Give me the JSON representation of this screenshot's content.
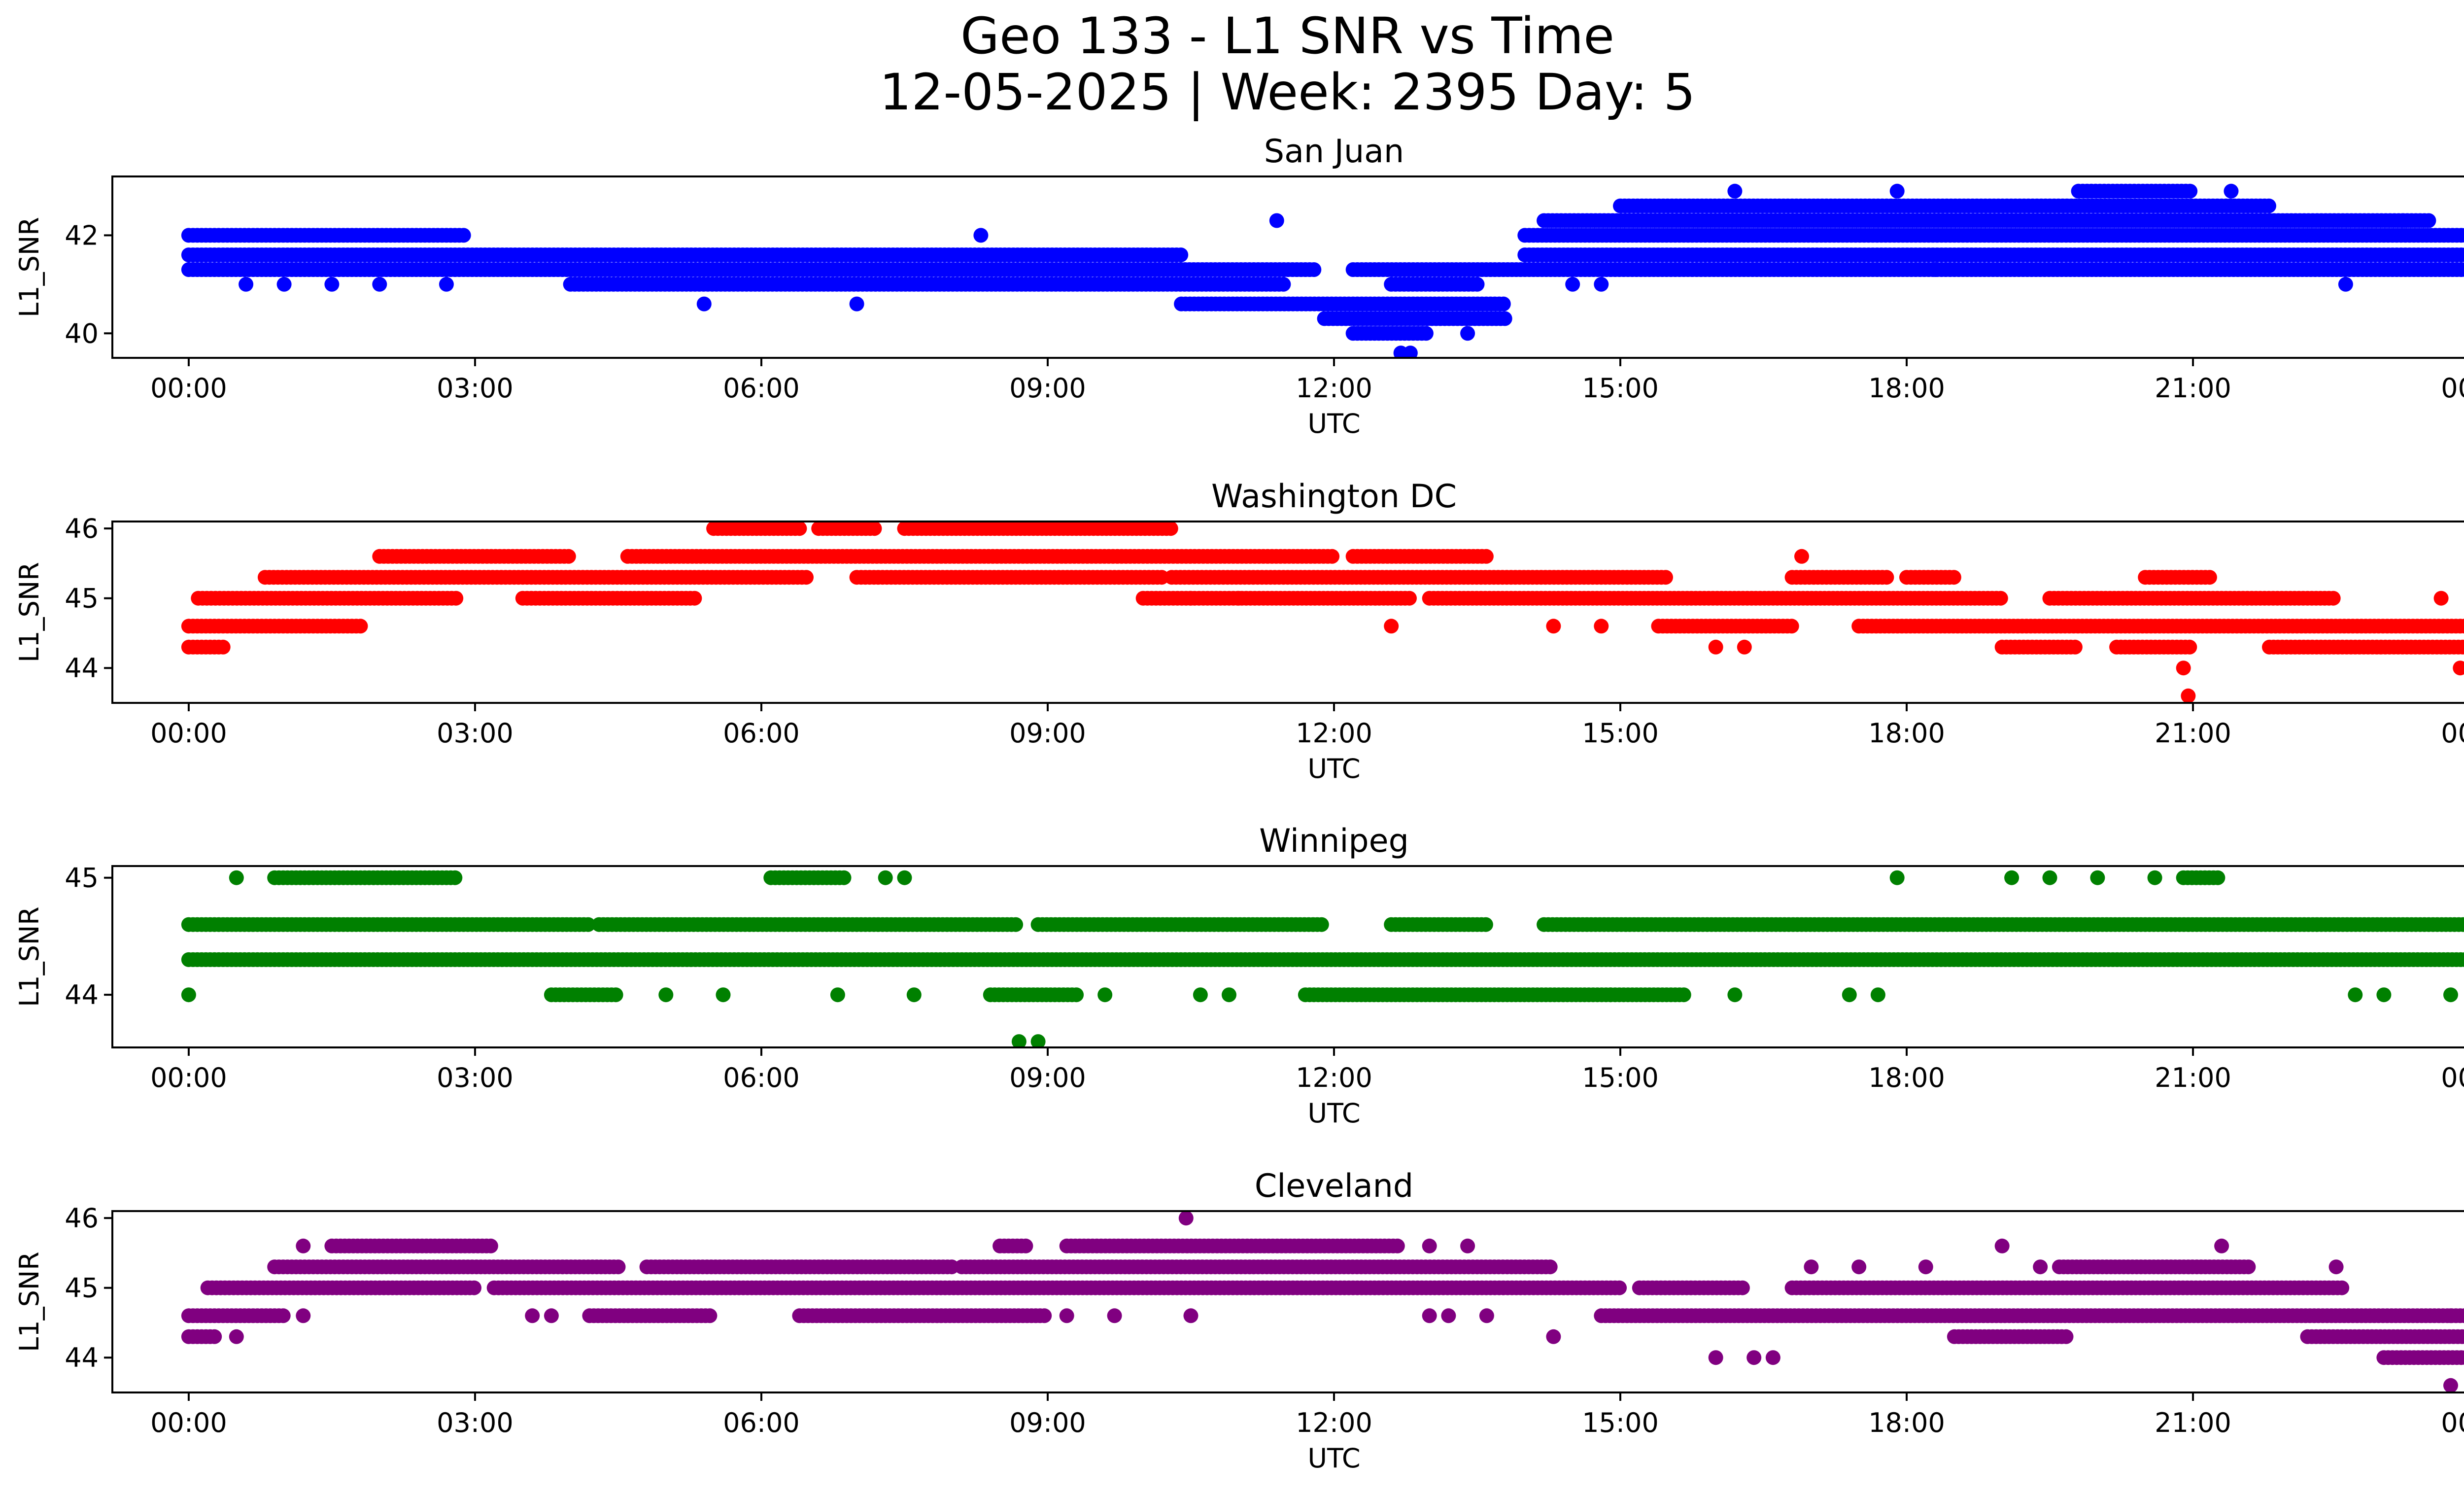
{
  "figure": {
    "title_line1": "Geo 133 - L1 SNR vs Time",
    "title_line2": "12-05-2025 | Week: 2395 Day: 5"
  },
  "chart_data": [
    {
      "type": "scatter",
      "title": "San Juan",
      "xlabel": "UTC",
      "ylabel": "L1_SNR",
      "color": "#0000ff",
      "xlim": [
        -0.8,
        24.8
      ],
      "ylim": [
        39.5,
        43.2
      ],
      "x_ticks": [
        "00:00",
        "03:00",
        "06:00",
        "09:00",
        "12:00",
        "15:00",
        "18:00",
        "21:00",
        "00:00"
      ],
      "y_ticks": [
        40,
        42
      ],
      "levels": [
        {
          "y": 41.3,
          "ranges": [
            [
              0.0,
              11.8
            ],
            [
              12.2,
              24.0
            ]
          ]
        },
        {
          "y": 41.6,
          "ranges": [
            [
              0.0,
              10.4
            ],
            [
              14.0,
              24.0
            ]
          ]
        },
        {
          "y": 42.0,
          "ranges": [
            [
              0.0,
              2.9
            ],
            [
              14.0,
              24.0
            ]
          ]
        },
        {
          "y": 41.0,
          "ranges": [
            [
              4.0,
              11.5
            ],
            [
              12.6,
              13.5
            ]
          ]
        },
        {
          "y": 40.6,
          "ranges": [
            [
              10.4,
              13.8
            ]
          ]
        },
        {
          "y": 40.3,
          "ranges": [
            [
              11.9,
              13.8
            ]
          ]
        },
        {
          "y": 40.0,
          "ranges": [
            [
              12.2,
              13.0
            ]
          ]
        },
        {
          "y": 42.3,
          "ranges": [
            [
              14.2,
              23.5
            ]
          ]
        },
        {
          "y": 42.6,
          "ranges": [
            [
              15.0,
              21.8
            ]
          ]
        },
        {
          "y": 42.9,
          "ranges": [
            [
              19.8,
              21.0
            ]
          ]
        }
      ],
      "points": [
        [
          0.6,
          41.0
        ],
        [
          1.0,
          41.0
        ],
        [
          1.5,
          41.0
        ],
        [
          2.0,
          41.0
        ],
        [
          2.7,
          41.0
        ],
        [
          5.4,
          40.6
        ],
        [
          7.0,
          40.6
        ],
        [
          8.3,
          42.0
        ],
        [
          11.4,
          42.3
        ],
        [
          12.7,
          39.6
        ],
        [
          12.8,
          39.6
        ],
        [
          13.4,
          40.0
        ],
        [
          14.5,
          41.0
        ],
        [
          14.8,
          41.0
        ],
        [
          16.2,
          42.9
        ],
        [
          17.9,
          42.9
        ],
        [
          18.3,
          41.3
        ],
        [
          21.4,
          42.9
        ],
        [
          22.6,
          41.0
        ],
        [
          23.2,
          42.3
        ]
      ]
    },
    {
      "type": "scatter",
      "title": "Washington DC",
      "xlabel": "UTC",
      "ylabel": "L1_SNR",
      "color": "#ff0000",
      "xlim": [
        -0.8,
        24.8
      ],
      "ylim": [
        43.5,
        46.1
      ],
      "x_ticks": [
        "00:00",
        "03:00",
        "06:00",
        "09:00",
        "12:00",
        "15:00",
        "18:00",
        "21:00",
        "00:00"
      ],
      "y_ticks": [
        44,
        45,
        46
      ],
      "levels": [
        {
          "y": 44.3,
          "ranges": [
            [
              0.0,
              0.4
            ],
            [
              19.0,
              19.8
            ],
            [
              20.2,
              21.0
            ],
            [
              21.8,
              24.0
            ]
          ]
        },
        {
          "y": 44.6,
          "ranges": [
            [
              0.0,
              1.8
            ],
            [
              15.4,
              16.8
            ],
            [
              17.5,
              24.0
            ]
          ]
        },
        {
          "y": 45.0,
          "ranges": [
            [
              0.1,
              2.8
            ],
            [
              3.5,
              5.3
            ],
            [
              10.0,
              12.8
            ],
            [
              13.0,
              19.0
            ],
            [
              19.5,
              22.5
            ]
          ]
        },
        {
          "y": 45.3,
          "ranges": [
            [
              0.8,
              6.5
            ],
            [
              7.0,
              10.2
            ],
            [
              10.3,
              15.5
            ],
            [
              16.8,
              17.8
            ],
            [
              18.0,
              18.5
            ],
            [
              20.5,
              21.2
            ]
          ]
        },
        {
          "y": 45.6,
          "ranges": [
            [
              2.0,
              4.0
            ],
            [
              4.6,
              12.0
            ],
            [
              12.2,
              13.6
            ]
          ]
        },
        {
          "y": 46.0,
          "ranges": [
            [
              5.5,
              6.4
            ],
            [
              6.6,
              7.2
            ],
            [
              7.5,
              10.3
            ]
          ]
        }
      ],
      "points": [
        [
          10.5,
          45.0
        ],
        [
          11.0,
          45.0
        ],
        [
          12.6,
          44.6
        ],
        [
          14.3,
          44.6
        ],
        [
          14.8,
          44.6
        ],
        [
          16.0,
          44.3
        ],
        [
          16.3,
          44.3
        ],
        [
          16.9,
          45.6
        ],
        [
          20.9,
          44.0
        ],
        [
          20.95,
          43.6
        ],
        [
          23.6,
          45.0
        ],
        [
          23.8,
          44.0
        ]
      ]
    },
    {
      "type": "scatter",
      "title": "Winnipeg",
      "xlabel": "UTC",
      "ylabel": "L1_SNR",
      "color": "#008000",
      "xlim": [
        -0.8,
        24.8
      ],
      "ylim": [
        43.55,
        45.1
      ],
      "x_ticks": [
        "00:00",
        "03:00",
        "06:00",
        "09:00",
        "12:00",
        "15:00",
        "18:00",
        "21:00",
        "00:00"
      ],
      "y_ticks": [
        44,
        45
      ],
      "levels": [
        {
          "y": 44.3,
          "ranges": [
            [
              0.0,
              24.0
            ]
          ]
        },
        {
          "y": 44.6,
          "ranges": [
            [
              0.0,
              4.2
            ],
            [
              4.3,
              8.7
            ],
            [
              8.9,
              11.9
            ],
            [
              12.6,
              13.6
            ],
            [
              14.2,
              24.0
            ]
          ]
        },
        {
          "y": 44.0,
          "ranges": [
            [
              3.8,
              4.5
            ],
            [
              8.4,
              9.3
            ],
            [
              11.7,
              14.9
            ],
            [
              14.9,
              15.7
            ]
          ]
        },
        {
          "y": 45.0,
          "ranges": [
            [
              0.9,
              2.8
            ],
            [
              6.1,
              6.9
            ],
            [
              20.9,
              21.3
            ]
          ]
        }
      ],
      "points": [
        [
          0.0,
          44.0
        ],
        [
          0.5,
          45.0
        ],
        [
          5.0,
          44.0
        ],
        [
          5.6,
          44.0
        ],
        [
          6.8,
          44.0
        ],
        [
          7.6,
          44.0
        ],
        [
          8.9,
          43.6
        ],
        [
          8.7,
          43.6
        ],
        [
          9.6,
          44.0
        ],
        [
          10.6,
          44.0
        ],
        [
          10.9,
          44.0
        ],
        [
          16.2,
          44.0
        ],
        [
          17.4,
          44.0
        ],
        [
          17.7,
          44.0
        ],
        [
          17.9,
          45.0
        ],
        [
          19.1,
          45.0
        ],
        [
          19.5,
          45.0
        ],
        [
          20.0,
          45.0
        ],
        [
          20.6,
          45.0
        ],
        [
          22.7,
          44.0
        ],
        [
          23.0,
          44.0
        ],
        [
          23.7,
          44.0
        ],
        [
          7.3,
          45.0
        ],
        [
          7.5,
          45.0
        ]
      ]
    },
    {
      "type": "scatter",
      "title": "Cleveland",
      "xlabel": "UTC",
      "ylabel": "L1_SNR",
      "color": "#800080",
      "xlim": [
        -0.8,
        24.8
      ],
      "ylim": [
        43.5,
        46.1
      ],
      "x_ticks": [
        "00:00",
        "03:00",
        "06:00",
        "09:00",
        "12:00",
        "15:00",
        "18:00",
        "21:00",
        "00:00"
      ],
      "y_ticks": [
        44,
        45,
        46
      ],
      "levels": [
        {
          "y": 44.3,
          "ranges": [
            [
              0.0,
              0.3
            ],
            [
              18.5,
              19.7
            ],
            [
              22.2,
              24.0
            ]
          ]
        },
        {
          "y": 44.6,
          "ranges": [
            [
              0.0,
              1.0
            ],
            [
              4.2,
              5.5
            ],
            [
              6.4,
              9.0
            ],
            [
              14.8,
              24.0
            ]
          ]
        },
        {
          "y": 45.0,
          "ranges": [
            [
              0.2,
              3.0
            ],
            [
              3.2,
              15.0
            ],
            [
              15.2,
              16.3
            ],
            [
              16.8,
              22.6
            ]
          ]
        },
        {
          "y": 45.3,
          "ranges": [
            [
              0.9,
              4.5
            ],
            [
              4.8,
              8.0
            ],
            [
              8.1,
              14.3
            ],
            [
              19.6,
              21.6
            ]
          ]
        },
        {
          "y": 45.6,
          "ranges": [
            [
              1.5,
              3.2
            ],
            [
              8.5,
              8.8
            ],
            [
              9.2,
              12.7
            ]
          ]
        },
        {
          "y": 44.0,
          "ranges": [
            [
              23.0,
              24.0
            ]
          ]
        }
      ],
      "points": [
        [
          0.5,
          44.3
        ],
        [
          1.2,
          44.6
        ],
        [
          1.2,
          45.6
        ],
        [
          3.6,
          44.6
        ],
        [
          3.8,
          44.6
        ],
        [
          9.2,
          44.6
        ],
        [
          9.7,
          44.6
        ],
        [
          10.5,
          44.6
        ],
        [
          10.45,
          46.0
        ],
        [
          13.0,
          44.6
        ],
        [
          13.2,
          44.6
        ],
        [
          13.6,
          44.6
        ],
        [
          13.4,
          45.6
        ],
        [
          13.0,
          45.6
        ],
        [
          14.3,
          44.3
        ],
        [
          16.0,
          44.0
        ],
        [
          16.4,
          44.0
        ],
        [
          16.6,
          44.0
        ],
        [
          17.0,
          45.3
        ],
        [
          17.5,
          45.3
        ],
        [
          18.2,
          45.3
        ],
        [
          19.0,
          45.6
        ],
        [
          19.4,
          45.3
        ],
        [
          21.3,
          45.6
        ],
        [
          22.5,
          45.3
        ],
        [
          23.7,
          44.6
        ],
        [
          23.7,
          43.6
        ]
      ]
    }
  ]
}
